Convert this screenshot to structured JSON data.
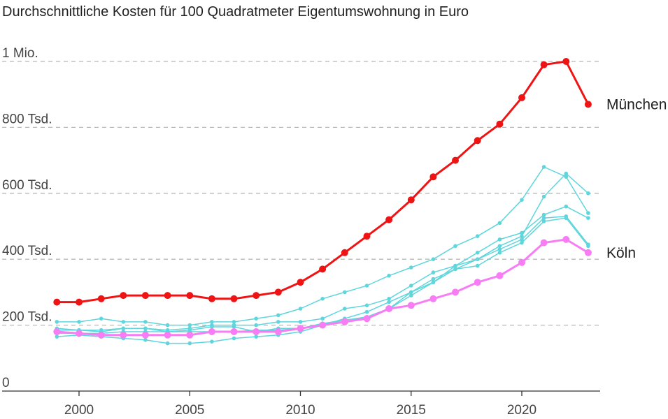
{
  "title": "Durchschnittliche Kosten für 100 Quadratmeter Eigentumswohnung in Euro",
  "chart_data": {
    "type": "line",
    "title": "Durchschnittliche Kosten für 100 Quadratmeter Eigentumswohnung in Euro",
    "xlabel": "",
    "ylabel": "",
    "xlim": [
      1998.5,
      2023.5
    ],
    "ylim": [
      0,
      1000000
    ],
    "x_ticks": [
      2000,
      2005,
      2010,
      2015,
      2020
    ],
    "y_ticks": [
      {
        "value": 0,
        "label": "0"
      },
      {
        "value": 200000,
        "label": "200 Tsd."
      },
      {
        "value": 400000,
        "label": "400 Tsd."
      },
      {
        "value": 600000,
        "label": "600 Tsd."
      },
      {
        "value": 800000,
        "label": "800 Tsd."
      },
      {
        "value": 1000000,
        "label": "1 Mio."
      }
    ],
    "grid": "horizontal dashed",
    "x": [
      1999,
      2000,
      2001,
      2002,
      2003,
      2004,
      2005,
      2006,
      2007,
      2008,
      2009,
      2010,
      2011,
      2012,
      2013,
      2014,
      2015,
      2016,
      2017,
      2018,
      2019,
      2020,
      2021,
      2022,
      2023
    ],
    "series": [
      {
        "values": [
          185000,
          185000,
          185000,
          190000,
          190000,
          180000,
          185000,
          195000,
          195000,
          180000,
          190000,
          190000,
          205000,
          215000,
          225000,
          250000,
          290000,
          330000,
          380000,
          400000,
          430000,
          460000,
          525000,
          530000,
          445000
        ],
        "color": "#5ed6dc",
        "width": 1.5,
        "r": 2.8,
        "emphasis": false
      },
      {
        "values": [
          175000,
          175000,
          175000,
          180000,
          180000,
          180000,
          180000,
          180000,
          180000,
          185000,
          185000,
          190000,
          205000,
          210000,
          225000,
          250000,
          300000,
          330000,
          370000,
          380000,
          420000,
          450000,
          515000,
          525000,
          440000
        ],
        "color": "#5ed6dc",
        "width": 1.5,
        "r": 2.8,
        "emphasis": false
      },
      {
        "values": [
          210000,
          210000,
          220000,
          210000,
          210000,
          200000,
          200000,
          210000,
          210000,
          220000,
          230000,
          250000,
          280000,
          300000,
          320000,
          350000,
          375000,
          400000,
          440000,
          470000,
          510000,
          580000,
          680000,
          650000,
          540000
        ],
        "color": "#5ed6dc",
        "width": 1.5,
        "r": 2.8,
        "emphasis": false
      },
      {
        "values": [
          190000,
          185000,
          180000,
          190000,
          190000,
          185000,
          190000,
          200000,
          200000,
          200000,
          210000,
          210000,
          220000,
          250000,
          260000,
          280000,
          320000,
          360000,
          380000,
          420000,
          460000,
          480000,
          535000,
          560000,
          525000
        ],
        "color": "#5ed6dc",
        "width": 1.5,
        "r": 2.8,
        "emphasis": false
      },
      {
        "values": [
          165000,
          170000,
          165000,
          160000,
          155000,
          145000,
          145000,
          150000,
          160000,
          165000,
          170000,
          180000,
          200000,
          220000,
          240000,
          270000,
          300000,
          340000,
          370000,
          400000,
          440000,
          470000,
          590000,
          660000,
          600000
        ],
        "color": "#5ed6dc",
        "width": 1.5,
        "r": 2.8,
        "emphasis": false
      },
      {
        "values": [
          180000,
          175000,
          170000,
          170000,
          170000,
          170000,
          170000,
          180000,
          180000,
          180000,
          180000,
          190000,
          200000,
          210000,
          220000,
          250000,
          260000,
          280000,
          300000,
          330000,
          350000,
          390000,
          450000,
          460000,
          420000
        ],
        "color": "#f77df4",
        "width": 3,
        "r": 5,
        "emphasis": true
      },
      {
        "values": [
          270000,
          270000,
          280000,
          290000,
          290000,
          290000,
          290000,
          280000,
          280000,
          290000,
          300000,
          330000,
          370000,
          420000,
          470000,
          520000,
          580000,
          650000,
          700000,
          760000,
          810000,
          890000,
          990000,
          1000000,
          870000
        ],
        "color": "#f01313",
        "width": 3,
        "r": 5,
        "emphasis": true
      }
    ],
    "labels": [
      {
        "text": "München",
        "value": 870000,
        "color": "#f01313"
      },
      {
        "text": "Köln",
        "value": 420000,
        "color": "#f77df4"
      }
    ]
  }
}
